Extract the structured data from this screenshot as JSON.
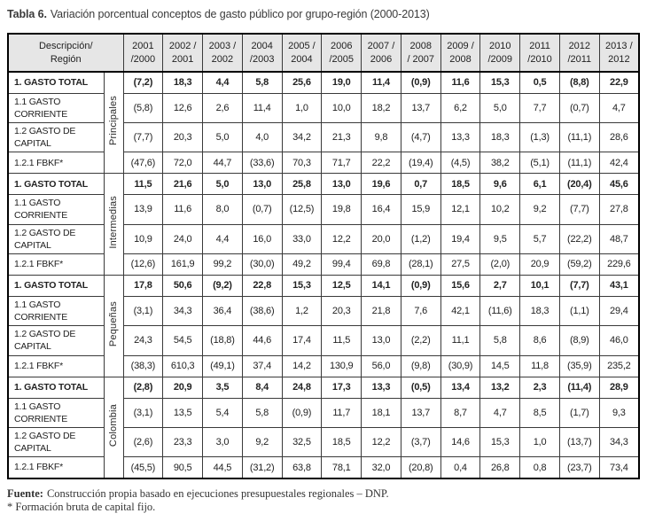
{
  "title": {
    "label": "Tabla 6.",
    "text": "Variación porcentual conceptos de gasto público por grupo-región (2000-2013)"
  },
  "table": {
    "corner_header": "Descripción/\nRegión",
    "year_headers": [
      "2001\n/2000",
      "2002 /\n2001",
      "2003 /\n2002",
      "2004\n/2003",
      "2005 /\n2004",
      "2006\n/2005",
      "2007 /\n2006",
      "2008\n/ 2007",
      "2009 /\n2008",
      "2010\n/2009",
      "2011\n/2010",
      "2012\n/2011",
      "2013 /\n2012"
    ],
    "row_labels": [
      "1. GASTO TOTAL",
      "1.1 GASTO\nCORRIENTE",
      "1.2 GASTO DE\nCAPITAL",
      "1.2.1 FBKF*"
    ],
    "groups": [
      {
        "region": "Principales",
        "rows": [
          [
            "(7,2)",
            "18,3",
            "4,4",
            "5,8",
            "25,6",
            "19,0",
            "11,4",
            "(0,9)",
            "11,6",
            "15,3",
            "0,5",
            "(8,8)",
            "22,9"
          ],
          [
            "(5,8)",
            "12,6",
            "2,6",
            "11,4",
            "1,0",
            "10,0",
            "18,2",
            "13,7",
            "6,2",
            "5,0",
            "7,7",
            "(0,7)",
            "4,7"
          ],
          [
            "(7,7)",
            "20,3",
            "5,0",
            "4,0",
            "34,2",
            "21,3",
            "9,8",
            "(4,7)",
            "13,3",
            "18,3",
            "(1,3)",
            "(11,1)",
            "28,6"
          ],
          [
            "(47,6)",
            "72,0",
            "44,7",
            "(33,6)",
            "70,3",
            "71,7",
            "22,2",
            "(19,4)",
            "(4,5)",
            "38,2",
            "(5,1)",
            "(11,1)",
            "42,4"
          ]
        ]
      },
      {
        "region": "Intermedias",
        "rows": [
          [
            "11,5",
            "21,6",
            "5,0",
            "13,0",
            "25,8",
            "13,0",
            "19,6",
            "0,7",
            "18,5",
            "9,6",
            "6,1",
            "(20,4)",
            "45,6"
          ],
          [
            "13,9",
            "11,6",
            "8,0",
            "(0,7)",
            "(12,5)",
            "19,8",
            "16,4",
            "15,9",
            "12,1",
            "10,2",
            "9,2",
            "(7,7)",
            "27,8"
          ],
          [
            "10,9",
            "24,0",
            "4,4",
            "16,0",
            "33,0",
            "12,2",
            "20,0",
            "(1,2)",
            "19,4",
            "9,5",
            "5,7",
            "(22,2)",
            "48,7"
          ],
          [
            "(12,6)",
            "161,9",
            "99,2",
            "(30,0)",
            "49,2",
            "99,4",
            "69,8",
            "(28,1)",
            "27,5",
            "(2,0)",
            "20,9",
            "(59,2)",
            "229,6"
          ]
        ]
      },
      {
        "region": "Pequeñas",
        "rows": [
          [
            "17,8",
            "50,6",
            "(9,2)",
            "22,8",
            "15,3",
            "12,5",
            "14,1",
            "(0,9)",
            "15,6",
            "2,7",
            "10,1",
            "(7,7)",
            "43,1"
          ],
          [
            "(3,1)",
            "34,3",
            "36,4",
            "(38,6)",
            "1,2",
            "20,3",
            "21,8",
            "7,6",
            "42,1",
            "(11,6)",
            "18,3",
            "(1,1)",
            "29,4"
          ],
          [
            "24,3",
            "54,5",
            "(18,8)",
            "44,6",
            "17,4",
            "11,5",
            "13,0",
            "(2,2)",
            "11,1",
            "5,8",
            "8,6",
            "(8,9)",
            "46,0"
          ],
          [
            "(38,3)",
            "610,3",
            "(49,1)",
            "37,4",
            "14,2",
            "130,9",
            "56,0",
            "(9,8)",
            "(30,9)",
            "14,5",
            "11,8",
            "(35,9)",
            "235,2"
          ]
        ]
      },
      {
        "region": "Colombia",
        "rows": [
          [
            "(2,8)",
            "20,9",
            "3,5",
            "8,4",
            "24,8",
            "17,3",
            "13,3",
            "(0,5)",
            "13,4",
            "13,2",
            "2,3",
            "(11,4)",
            "28,9"
          ],
          [
            "(3,1)",
            "13,5",
            "5,4",
            "5,8",
            "(0,9)",
            "11,7",
            "18,1",
            "13,7",
            "8,7",
            "4,7",
            "8,5",
            "(1,7)",
            "9,3"
          ],
          [
            "(2,6)",
            "23,3",
            "3,0",
            "9,2",
            "32,5",
            "18,5",
            "12,2",
            "(3,7)",
            "14,6",
            "15,3",
            "1,0",
            "(13,7)",
            "34,3"
          ],
          [
            "(45,5)",
            "90,5",
            "44,5",
            "(31,2)",
            "63,8",
            "78,1",
            "32,0",
            "(20,8)",
            "0,4",
            "26,8",
            "0,8",
            "(23,7)",
            "73,4"
          ]
        ]
      }
    ]
  },
  "footer": {
    "source_label": "Fuente:",
    "source_text": "Construcción propia basado en ejecuciones presupuestales regionales – DNP.",
    "note": "* Formación bruta de capital fijo."
  },
  "colors": {
    "header_bg": "#e6e6e6",
    "grid": "#3a3a3a",
    "outer_border": "#000000"
  }
}
